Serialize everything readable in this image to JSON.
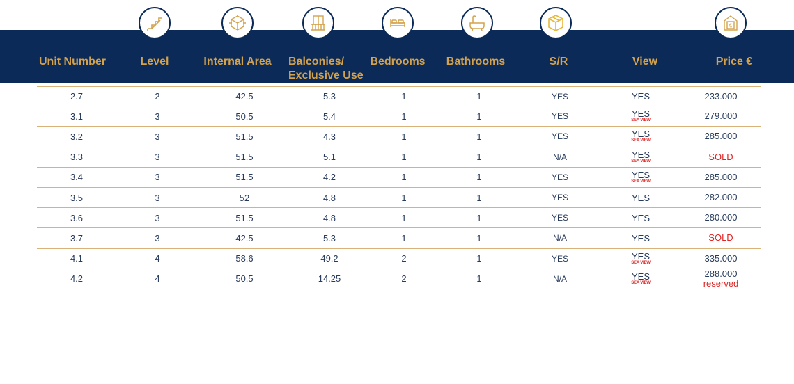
{
  "headers": {
    "unit_number": "Unit Number",
    "level": "Level",
    "internal_area": "Internal Area",
    "balconies_line1": "Balconies/",
    "balconies_line2": "Exclusive Use",
    "bedrooms": "Bedrooms",
    "bathrooms": "Bathrooms",
    "sr": "S/R",
    "view": "View",
    "price": "Price €"
  },
  "icons": [
    "stairs-icon",
    "area-cube-icon",
    "balcony-icon",
    "bed-icon",
    "bathtub-icon",
    "storage-box-icon",
    "price-house-icon"
  ],
  "colors": {
    "header_bg": "#0b2a57",
    "header_text": "#d4a24c",
    "row_border": "#d9b27a",
    "body_text": "#273b5c",
    "sold_red": "#e02424"
  },
  "rows": [
    {
      "unit": "2.7",
      "level": "2",
      "area": "42.5",
      "balcony": "5.3",
      "bedrooms": "1",
      "bathrooms": "1",
      "sr": "YES",
      "view": "YES",
      "view_note": "",
      "price": "233.000",
      "price_note": ""
    },
    {
      "unit": "3.1",
      "level": "3",
      "area": "50.5",
      "balcony": "5.4",
      "bedrooms": "1",
      "bathrooms": "1",
      "sr": "YES",
      "view": "YES",
      "view_note": "SEA VIEW",
      "price": "279.000",
      "price_note": ""
    },
    {
      "unit": "3.2",
      "level": "3",
      "area": "51.5",
      "balcony": "4.3",
      "bedrooms": "1",
      "bathrooms": "1",
      "sr": "YES",
      "view": "YES",
      "view_note": "SEA VIEW",
      "price": "285.000",
      "price_note": ""
    },
    {
      "unit": "3.3",
      "level": "3",
      "area": "51.5",
      "balcony": "5.1",
      "bedrooms": "1",
      "bathrooms": "1",
      "sr": "N/A",
      "view": "YES",
      "view_note": "SEA VIEW",
      "price": "SOLD",
      "price_note": ""
    },
    {
      "unit": "3.4",
      "level": "3",
      "area": "51.5",
      "balcony": "4.2",
      "bedrooms": "1",
      "bathrooms": "1",
      "sr": "YES",
      "view": "YES",
      "view_note": "SEA VIEW",
      "price": "285.000",
      "price_note": ""
    },
    {
      "unit": "3.5",
      "level": "3",
      "area": "52",
      "balcony": "4.8",
      "bedrooms": "1",
      "bathrooms": "1",
      "sr": "YES",
      "view": "YES",
      "view_note": "",
      "price": "282.000",
      "price_note": ""
    },
    {
      "unit": "3.6",
      "level": "3",
      "area": "51.5",
      "balcony": "4.8",
      "bedrooms": "1",
      "bathrooms": "1",
      "sr": "YES",
      "view": "YES",
      "view_note": "",
      "price": "280.000",
      "price_note": ""
    },
    {
      "unit": "3.7",
      "level": "3",
      "area": "42.5",
      "balcony": "5.3",
      "bedrooms": "1",
      "bathrooms": "1",
      "sr": "N/A",
      "view": "YES",
      "view_note": "",
      "price": "SOLD",
      "price_note": ""
    },
    {
      "unit": "4.1",
      "level": "4",
      "area": "58.6",
      "balcony": "49.2",
      "bedrooms": "2",
      "bathrooms": "1",
      "sr": "YES",
      "view": "YES",
      "view_note": "SEA VIEW",
      "price": "335.000",
      "price_note": ""
    },
    {
      "unit": "4.2",
      "level": "4",
      "area": "50.5",
      "balcony": "14.25",
      "bedrooms": "2",
      "bathrooms": "1",
      "sr": "N/A",
      "view": "YES",
      "view_note": "SEA VIEW",
      "price": "288.000",
      "price_note": "reserved"
    }
  ]
}
